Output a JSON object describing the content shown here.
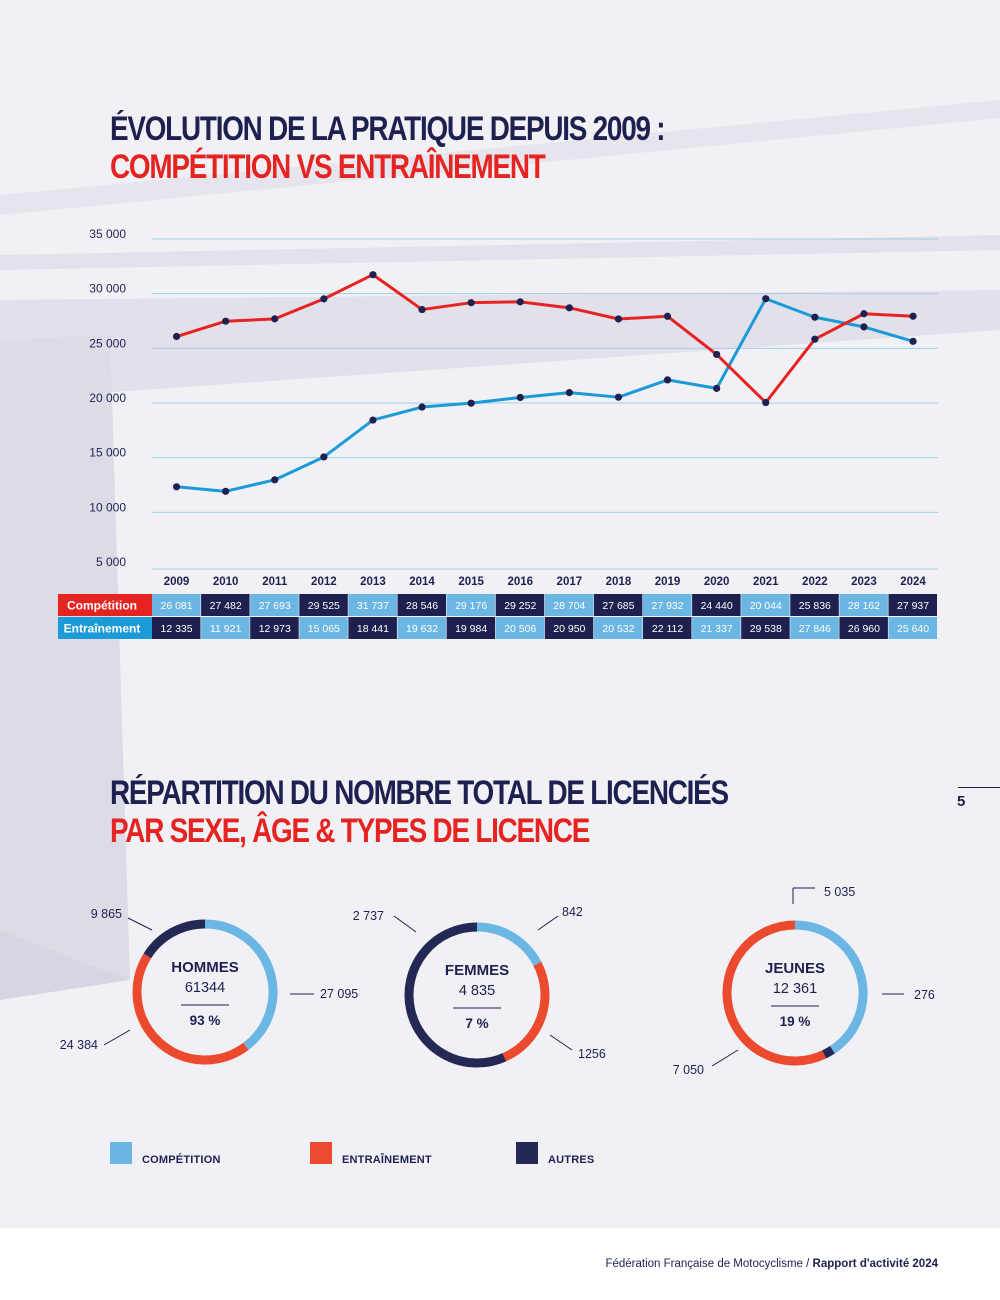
{
  "titles": {
    "chart1_line1": "ÉVOLUTION DE LA PRATIQUE DEPUIS 2009 :",
    "chart1_line2": "COMPÉTITION VS ENTRAÎNEMENT",
    "chart2_line1": "RÉPARTITION DU NOMBRE TOTAL DE LICENCIÉS",
    "chart2_line2": "PAR SEXE, ÂGE & TYPES DE LICENCE"
  },
  "page_number": "5",
  "footer": {
    "org": "Fédération Française de Motocyclisme / ",
    "report": "Rapport d'activité 2024"
  },
  "colors": {
    "navy": "#1e2150",
    "red": "#e52421",
    "blue": "#1a9ad6",
    "light_blue": "#6cb6e3",
    "orange": "#ec4a2e",
    "dark_navy": "#232854",
    "grid": "#9fcfea"
  },
  "chart_data": [
    {
      "type": "line",
      "x": [
        "2009",
        "2010",
        "2011",
        "2012",
        "2013",
        "2014",
        "2015",
        "2016",
        "2017",
        "2018",
        "2019",
        "2020",
        "2021",
        "2022",
        "2023",
        "2024"
      ],
      "series": [
        {
          "name": "Compétition",
          "color": "#e52421",
          "values": [
            26081,
            27482,
            27693,
            29525,
            31737,
            28546,
            29176,
            29252,
            28704,
            27685,
            27932,
            24440,
            20044,
            25836,
            28162,
            27937
          ],
          "labels": [
            "26 081",
            "27 482",
            "27 693",
            "29 525",
            "31 737",
            "28 546",
            "29 176",
            "29 252",
            "28 704",
            "27 685",
            "27 932",
            "24 440",
            "20 044",
            "25 836",
            "28 162",
            "27 937"
          ]
        },
        {
          "name": "Entraînement",
          "color": "#1a9ad6",
          "values": [
            12335,
            11921,
            12973,
            15065,
            18441,
            19632,
            19984,
            20506,
            20950,
            20532,
            22112,
            21337,
            29538,
            27846,
            26960,
            25640
          ],
          "labels": [
            "12 335",
            "11 921",
            "12 973",
            "15 065",
            "18 441",
            "19 632",
            "19 984",
            "20 506",
            "20 950",
            "20 532",
            "22 112",
            "21 337",
            "29 538",
            "27 846",
            "26 960",
            "25 640"
          ]
        }
      ],
      "yticks": [
        "35 000",
        "30 000",
        "25 000",
        "20 000",
        "15 000",
        "10 000",
        "5 000"
      ],
      "ytick_values": [
        35000,
        30000,
        25000,
        20000,
        15000,
        10000,
        5000
      ],
      "ylim": [
        5000,
        35000
      ],
      "grid": true,
      "table_below": true
    },
    {
      "type": "pie",
      "variant": "donut",
      "charts": [
        {
          "title": "HOMMES",
          "total": "61344",
          "percent": "93 %",
          "segments": [
            {
              "category": "Compétition",
              "value": 24384,
              "label": "24 384"
            },
            {
              "category": "Entraînement",
              "value": 27095,
              "label": "27 095"
            },
            {
              "category": "Autres",
              "value": 9865,
              "label": "9 865"
            }
          ]
        },
        {
          "title": "FEMMES",
          "total": "4 835",
          "percent": "7 %",
          "segments": [
            {
              "category": "Compétition",
              "value": 842,
              "label": "842"
            },
            {
              "category": "Entraînement",
              "value": 1256,
              "label": "1256"
            },
            {
              "category": "Autres",
              "value": 2737,
              "label": "2 737"
            }
          ]
        },
        {
          "title": "JEUNES",
          "total": "12 361",
          "percent": "19 %",
          "segments": [
            {
              "category": "Compétition",
              "value": 5035,
              "label": "5 035"
            },
            {
              "category": "Autres",
              "value": 276,
              "label": "276"
            },
            {
              "category": "Entraînement",
              "value": 7050,
              "label": "7 050"
            }
          ]
        }
      ],
      "legend": [
        {
          "label": "COMPÉTITION",
          "color": "#6cb6e3"
        },
        {
          "label": "ENTRAÎNEMENT",
          "color": "#ec4a2e"
        },
        {
          "label": "AUTRES",
          "color": "#232854"
        }
      ],
      "legend_position": "bottom"
    }
  ]
}
